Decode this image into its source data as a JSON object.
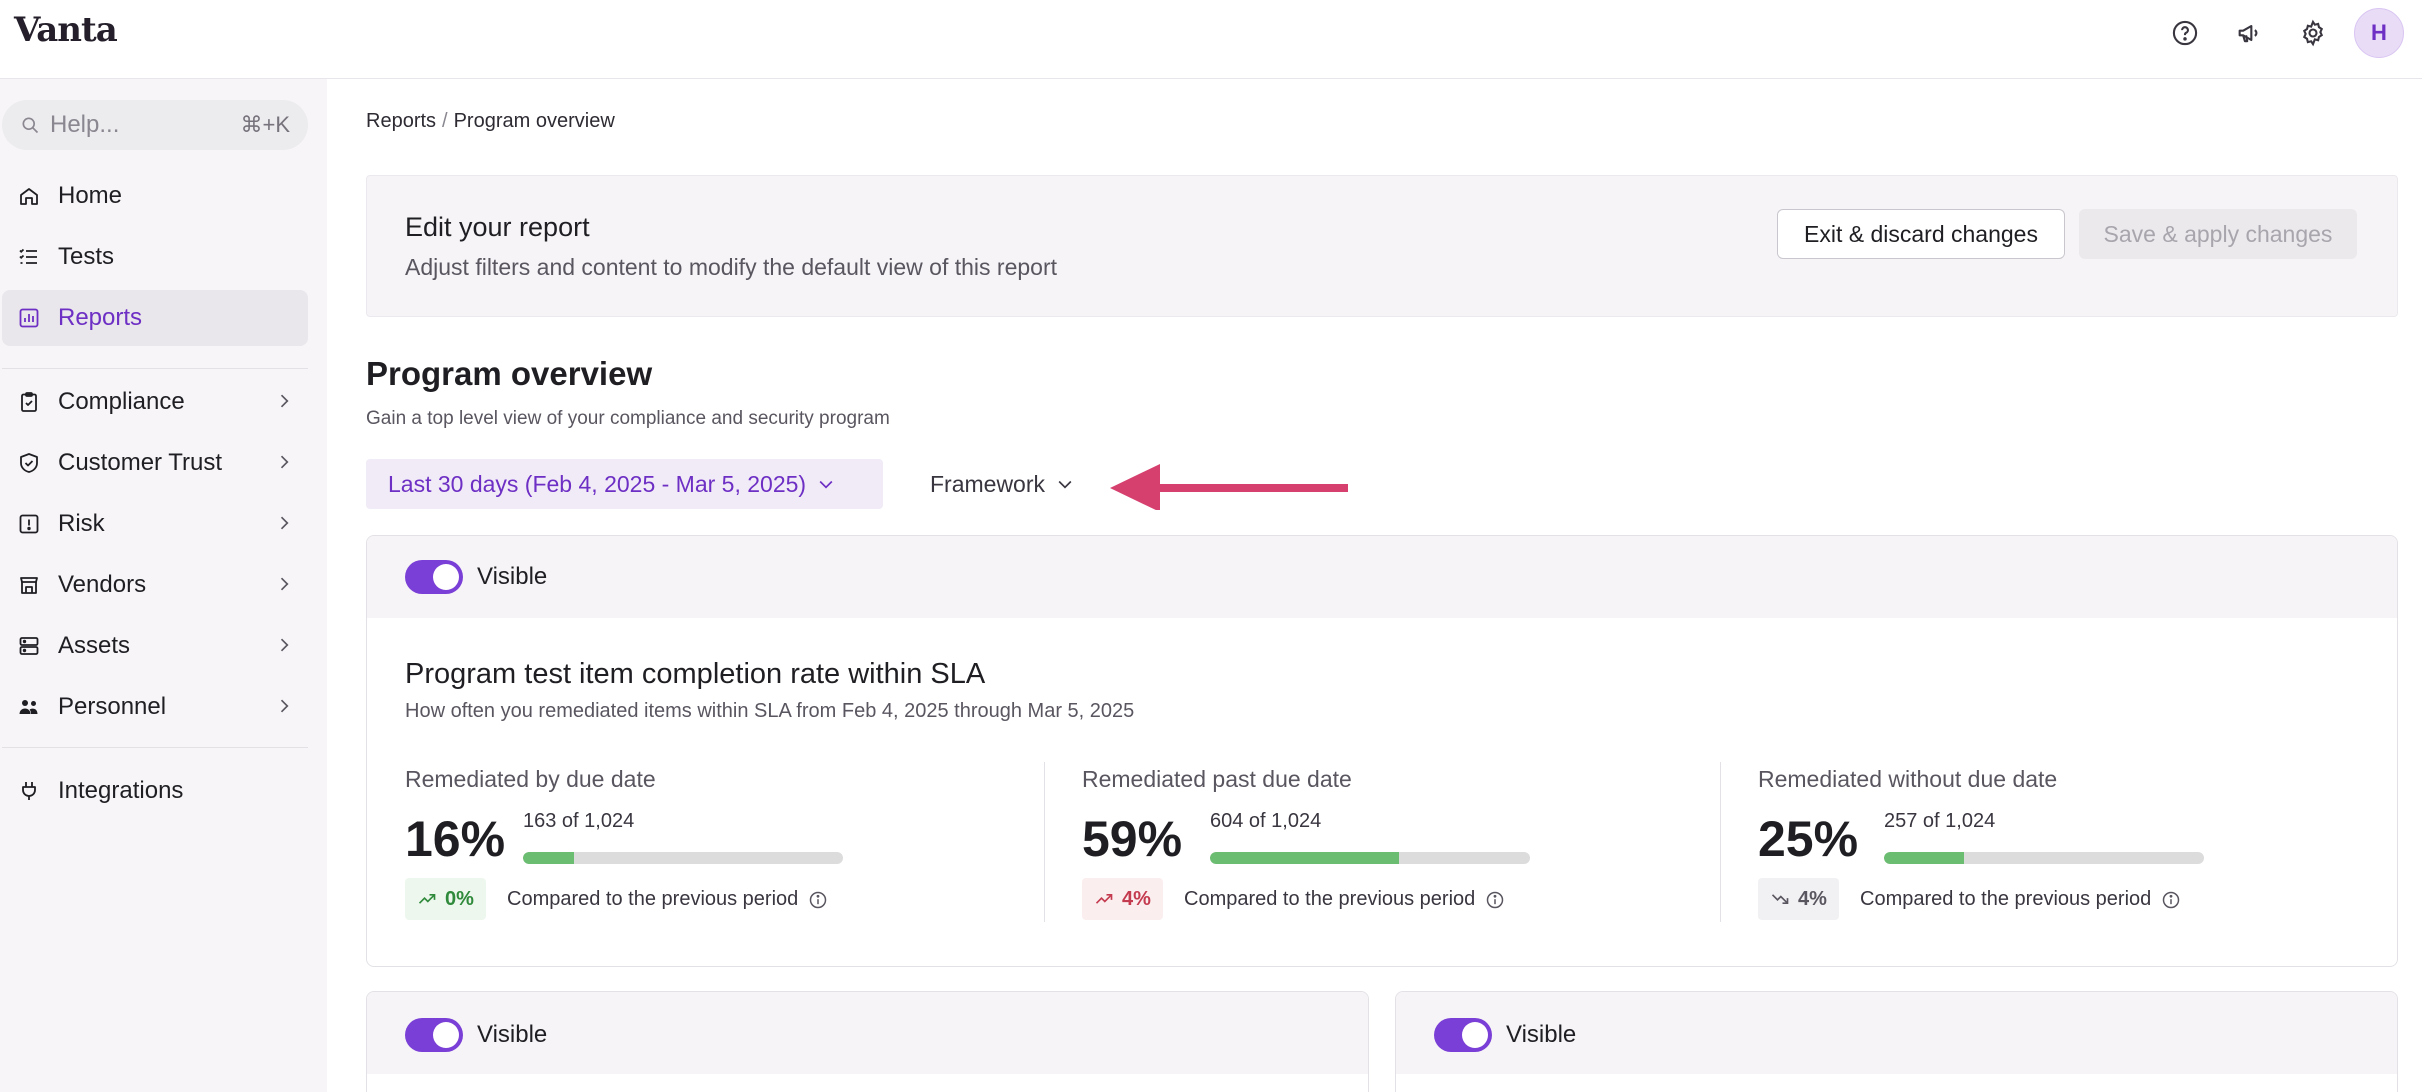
{
  "app": {
    "logo": "Vanta",
    "avatar_initial": "H"
  },
  "topbar": {
    "icons": [
      "help-circle-icon",
      "megaphone-icon",
      "gear-icon"
    ]
  },
  "sidebar": {
    "search": {
      "placeholder": "Help...",
      "shortcut": "⌘+K"
    },
    "items": [
      {
        "label": "Home",
        "icon": "home-icon"
      },
      {
        "label": "Tests",
        "icon": "list-icon"
      },
      {
        "label": "Reports",
        "icon": "chart-icon",
        "active": true
      },
      {
        "label": "Compliance",
        "icon": "clipboard-check-icon"
      },
      {
        "label": "Customer Trust",
        "icon": "shield-check-icon"
      },
      {
        "label": "Risk",
        "icon": "alert-square-icon"
      },
      {
        "label": "Vendors",
        "icon": "store-icon"
      },
      {
        "label": "Assets",
        "icon": "server-icon"
      },
      {
        "label": "Personnel",
        "icon": "people-icon"
      },
      {
        "label": "Integrations",
        "icon": "plug-icon"
      }
    ]
  },
  "breadcrumb": {
    "parent": "Reports",
    "separator": "/",
    "current": "Program overview"
  },
  "edit_banner": {
    "title": "Edit your report",
    "subtitle": "Adjust filters and content to modify the default view of this report",
    "exit_label": "Exit & discard changes",
    "save_label": "Save & apply changes"
  },
  "page": {
    "title": "Program overview",
    "subtitle": "Gain a top level view of your compliance and security program"
  },
  "filters": {
    "date_range": "Last 30 days (Feb 4, 2025 - Mar 5, 2025)",
    "framework": "Framework"
  },
  "cards": {
    "visible_label": "Visible",
    "sla": {
      "title": "Program test item completion rate within SLA",
      "subtitle": "How often you remediated items within SLA from Feb 4, 2025 through Mar 5, 2025",
      "compare_label": "Compared to the previous period",
      "stats": [
        {
          "label": "Remediated by due date",
          "pct": "16%",
          "count": "163 of 1,024",
          "fraction": 0.16,
          "trend": "0%",
          "trend_kind": "up-good"
        },
        {
          "label": "Remediated past due date",
          "pct": "59%",
          "count": "604 of 1,024",
          "fraction": 0.59,
          "trend": "4%",
          "trend_kind": "up-bad"
        },
        {
          "label": "Remediated without due date",
          "pct": "25%",
          "count": "257 of 1,024",
          "fraction": 0.25,
          "trend": "4%",
          "trend_kind": "down-neutral"
        }
      ]
    }
  },
  "colors": {
    "accent": "#6d2fc4",
    "toggle": "#7a3fd6",
    "bar_fill": "#6bbd72",
    "annotation_arrow": "#d6406f"
  }
}
